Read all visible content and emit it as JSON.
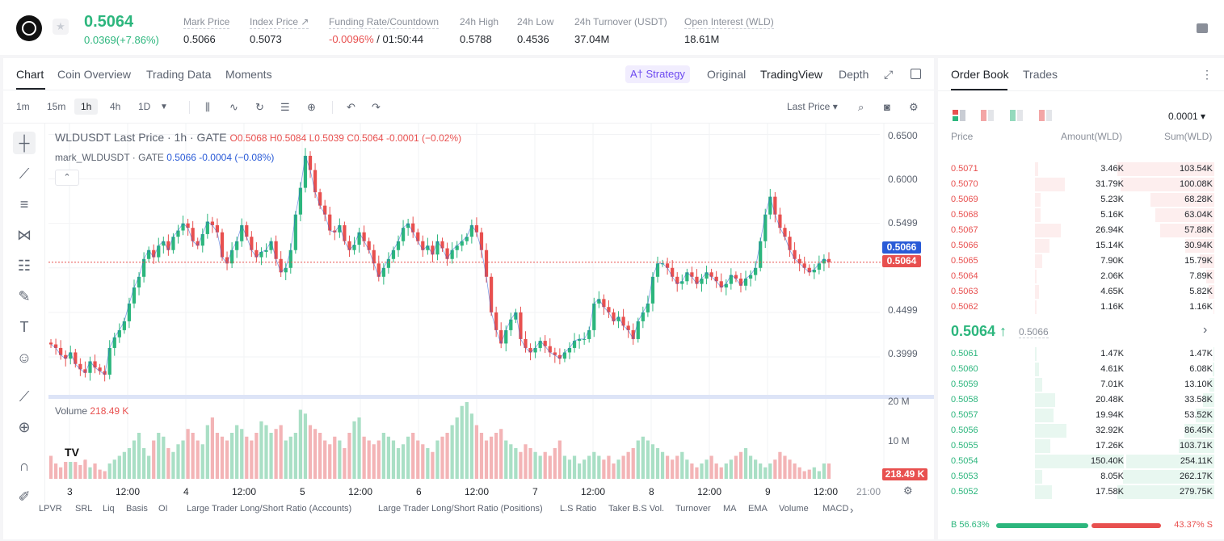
{
  "ticker": {
    "last_price": "0.5064",
    "change": "0.0369(+7.86%)",
    "stats": [
      {
        "label": "Mark Price",
        "value": "0.5066"
      },
      {
        "label": "Index Price ↗",
        "value": "0.5073"
      },
      {
        "label": "Funding Rate/Countdown",
        "value_neg": "-0.0096%",
        "value": " / 01:50:44"
      },
      {
        "label": "24h High",
        "value": "0.5788"
      },
      {
        "label": "24h Low",
        "value": "0.4536"
      },
      {
        "label": "24h Turnover (USDT)",
        "value": "37.04M"
      },
      {
        "label": "Open Interest (WLD)",
        "value": "18.61M"
      }
    ]
  },
  "chart_tabs": {
    "tabs": [
      "Chart",
      "Coin Overview",
      "Trading Data",
      "Moments"
    ],
    "strategy": "A† Strategy",
    "views": [
      "Original",
      "TradingView",
      "Depth"
    ]
  },
  "toolbar": {
    "timeframes": [
      "1m",
      "15m",
      "1h",
      "4h",
      "1D"
    ],
    "active_timeframe": "1h",
    "price_type": "Last Price ▾"
  },
  "legend": {
    "main": "WLDUSDT Last Price · 1h · GATE",
    "ohlc": "O0.5068  H0.5084  L0.5039  C0.5064  -0.0001 (−0.02%)",
    "mark_name": "mark_WLDUSDT · GATE",
    "mark_values": "0.5066  -0.0004 (−0.08%)",
    "collapse": "⌃"
  },
  "volume": {
    "label": "Volume",
    "value": "218.49 K",
    "tag": "218.49 K"
  },
  "price_tags": {
    "mark": "0.5066",
    "last": "0.5064"
  },
  "indicators": [
    "LPVR",
    "SRL",
    "Liq",
    "Basis",
    "OI",
    "Large Trader Long/Short Ratio (Accounts)",
    "Large Trader Long/Short Ratio (Positions)",
    "L.S Ratio",
    "Taker B.S Vol.",
    "Turnover",
    "MA",
    "EMA",
    "Volume",
    "MACD"
  ],
  "chart_data": {
    "type": "candlestick",
    "title": "WLDUSDT Last Price · 1h · GATE",
    "y_ticks": [
      "0.6500",
      "0.6000",
      "0.5499",
      "0.4499",
      "0.3999"
    ],
    "volume_ticks": [
      "20 M",
      "10 M"
    ],
    "x_ticks": [
      "3",
      "12:00",
      "4",
      "12:00",
      "5",
      "12:00",
      "6",
      "12:00",
      "7",
      "12:00",
      "8",
      "12:00",
      "9",
      "12:00",
      "21:00"
    ],
    "ylim": [
      0.37,
      0.655
    ],
    "close_path": [
      0.414,
      0.41,
      0.402,
      0.398,
      0.405,
      0.392,
      0.386,
      0.382,
      0.395,
      0.388,
      0.384,
      0.38,
      0.41,
      0.422,
      0.43,
      0.44,
      0.46,
      0.478,
      0.49,
      0.51,
      0.52,
      0.512,
      0.525,
      0.53,
      0.52,
      0.535,
      0.542,
      0.55,
      0.545,
      0.53,
      0.525,
      0.538,
      0.552,
      0.548,
      0.54,
      0.512,
      0.505,
      0.52,
      0.53,
      0.548,
      0.535,
      0.52,
      0.512,
      0.518,
      0.52,
      0.53,
      0.51,
      0.495,
      0.5,
      0.52,
      0.56,
      0.59,
      0.626,
      0.61,
      0.585,
      0.57,
      0.56,
      0.542,
      0.54,
      0.548,
      0.53,
      0.52,
      0.526,
      0.54,
      0.53,
      0.52,
      0.505,
      0.49,
      0.5,
      0.51,
      0.52,
      0.53,
      0.545,
      0.55,
      0.54,
      0.53,
      0.52,
      0.525,
      0.515,
      0.53,
      0.522,
      0.51,
      0.52,
      0.525,
      0.53,
      0.535,
      0.548,
      0.54,
      0.52,
      0.49,
      0.45,
      0.43,
      0.415,
      0.43,
      0.442,
      0.45,
      0.42,
      0.41,
      0.405,
      0.41,
      0.418,
      0.412,
      0.405,
      0.402,
      0.398,
      0.405,
      0.41,
      0.418,
      0.42,
      0.42,
      0.43,
      0.46,
      0.465,
      0.456,
      0.45,
      0.44,
      0.445,
      0.435,
      0.43,
      0.42,
      0.44,
      0.45,
      0.46,
      0.49,
      0.505,
      0.505,
      0.5,
      0.49,
      0.482,
      0.485,
      0.495,
      0.49,
      0.482,
      0.488,
      0.495,
      0.49,
      0.485,
      0.478,
      0.482,
      0.492,
      0.488,
      0.48,
      0.488,
      0.492,
      0.5,
      0.53,
      0.56,
      0.58,
      0.56,
      0.545,
      0.535,
      0.52,
      0.51,
      0.505,
      0.5,
      0.495,
      0.498,
      0.505,
      0.51,
      0.5064
    ],
    "volume_rel": [
      0.3,
      0.2,
      0.15,
      0.3,
      0.4,
      0.22,
      0.18,
      0.25,
      0.15,
      0.2,
      0.12,
      0.1,
      0.2,
      0.25,
      0.3,
      0.35,
      0.4,
      0.5,
      0.6,
      0.4,
      0.3,
      0.5,
      0.6,
      0.55,
      0.4,
      0.35,
      0.45,
      0.5,
      0.65,
      0.6,
      0.5,
      0.45,
      0.7,
      0.8,
      0.6,
      0.55,
      0.5,
      0.6,
      0.7,
      0.65,
      0.55,
      0.5,
      0.6,
      0.75,
      0.7,
      0.6,
      0.65,
      0.7,
      0.5,
      0.55,
      0.6,
      0.9,
      0.85,
      0.7,
      0.65,
      0.6,
      0.5,
      0.45,
      0.55,
      0.5,
      0.4,
      0.6,
      0.75,
      0.8,
      0.55,
      0.5,
      0.45,
      0.5,
      0.6,
      0.55,
      0.5,
      0.4,
      0.45,
      0.55,
      0.6,
      0.5,
      0.45,
      0.4,
      0.35,
      0.5,
      0.55,
      0.6,
      0.7,
      0.8,
      0.95,
      1.0,
      0.85,
      0.7,
      0.6,
      0.5,
      0.55,
      0.6,
      0.65,
      0.5,
      0.45,
      0.4,
      0.35,
      0.45,
      0.4,
      0.35,
      0.3,
      0.35,
      0.3,
      0.4,
      0.5,
      0.3,
      0.25,
      0.3,
      0.2,
      0.25,
      0.3,
      0.35,
      0.3,
      0.25,
      0.3,
      0.2,
      0.25,
      0.3,
      0.35,
      0.4,
      0.5,
      0.55,
      0.5,
      0.45,
      0.4,
      0.35,
      0.3,
      0.25,
      0.3,
      0.35,
      0.25,
      0.2,
      0.15,
      0.2,
      0.25,
      0.3,
      0.2,
      0.15,
      0.2,
      0.25,
      0.3,
      0.35,
      0.4,
      0.3,
      0.25,
      0.2,
      0.15,
      0.2,
      0.25,
      0.35,
      0.3,
      0.25,
      0.2,
      0.15,
      0.1,
      0.12,
      0.15,
      0.1
    ]
  },
  "order_book": {
    "tabs": [
      "Order Book",
      "Trades"
    ],
    "precision": "0.0001 ▾",
    "headers": {
      "price": "Price",
      "amount": "Amount(WLD)",
      "sum": "Sum(WLD)"
    },
    "asks": [
      {
        "price": "0.5071",
        "amount": "3.46K",
        "sum": "103.54K",
        "a": 0.02,
        "s": 1.0
      },
      {
        "price": "0.5070",
        "amount": "31.79K",
        "sum": "100.08K",
        "a": 0.21,
        "s": 0.97
      },
      {
        "price": "0.5069",
        "amount": "5.23K",
        "sum": "68.28K",
        "a": 0.04,
        "s": 0.66
      },
      {
        "price": "0.5068",
        "amount": "5.16K",
        "sum": "63.04K",
        "a": 0.04,
        "s": 0.61
      },
      {
        "price": "0.5067",
        "amount": "26.94K",
        "sum": "57.88K",
        "a": 0.18,
        "s": 0.56
      },
      {
        "price": "0.5066",
        "amount": "15.14K",
        "sum": "30.94K",
        "a": 0.1,
        "s": 0.3
      },
      {
        "price": "0.5065",
        "amount": "7.90K",
        "sum": "15.79K",
        "a": 0.05,
        "s": 0.15
      },
      {
        "price": "0.5064",
        "amount": "2.06K",
        "sum": "7.89K",
        "a": 0.01,
        "s": 0.08
      },
      {
        "price": "0.5063",
        "amount": "4.65K",
        "sum": "5.82K",
        "a": 0.03,
        "s": 0.06
      },
      {
        "price": "0.5062",
        "amount": "1.16K",
        "sum": "1.16K",
        "a": 0.01,
        "s": 0.01
      }
    ],
    "mid_price": "0.5064 ↑",
    "mark_price": "0.5066",
    "bids": [
      {
        "price": "0.5061",
        "amount": "1.47K",
        "sum": "1.47K",
        "a": 0.01,
        "s": 0.01
      },
      {
        "price": "0.5060",
        "amount": "4.61K",
        "sum": "6.08K",
        "a": 0.03,
        "s": 0.02
      },
      {
        "price": "0.5059",
        "amount": "7.01K",
        "sum": "13.10K",
        "a": 0.05,
        "s": 0.05
      },
      {
        "price": "0.5058",
        "amount": "20.48K",
        "sum": "33.58K",
        "a": 0.14,
        "s": 0.12
      },
      {
        "price": "0.5057",
        "amount": "19.94K",
        "sum": "53.52K",
        "a": 0.13,
        "s": 0.19
      },
      {
        "price": "0.5056",
        "amount": "32.92K",
        "sum": "86.45K",
        "a": 0.22,
        "s": 0.31
      },
      {
        "price": "0.5055",
        "amount": "17.26K",
        "sum": "103.71K",
        "a": 0.11,
        "s": 0.37
      },
      {
        "price": "0.5054",
        "amount": "150.40K",
        "sum": "254.11K",
        "a": 1.0,
        "s": 0.91
      },
      {
        "price": "0.5053",
        "amount": "8.05K",
        "sum": "262.17K",
        "a": 0.05,
        "s": 0.94
      },
      {
        "price": "0.5052",
        "amount": "17.58K",
        "sum": "279.75K",
        "a": 0.12,
        "s": 1.0
      }
    ],
    "buy_ratio": "B 56.63%",
    "sell_ratio": "43.37% S",
    "buy_frac": 0.5663
  },
  "colors": {
    "up": "#2cb67d",
    "down": "#e8504f",
    "up_bg": "#e8f7f0",
    "down_bg": "#fdeeee"
  }
}
